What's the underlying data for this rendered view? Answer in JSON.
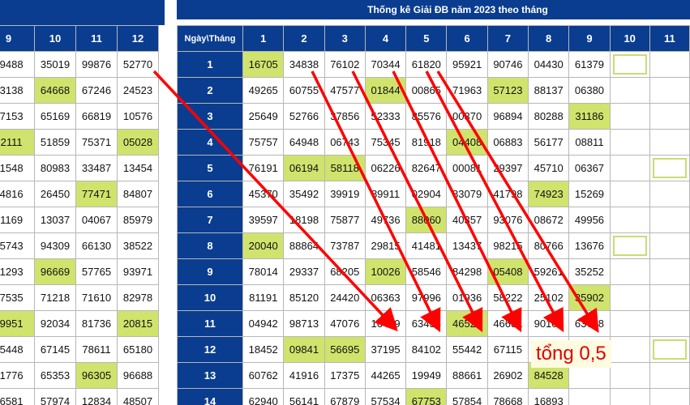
{
  "title": "Thống kê Giải ĐB năm 2023 theo tháng",
  "corner_label": "Ngày\\Tháng",
  "note": "tổng 0,5",
  "colors": {
    "header_bg": "#0a3d8f",
    "highlight": "#d0e36d",
    "arrow": "#ff0000",
    "note_text": "#e00000"
  },
  "left_table": {
    "headers": [
      "9",
      "10",
      "11",
      "12"
    ],
    "rows": [
      {
        "cells": [
          "69488",
          "35019",
          "99876",
          "52770"
        ],
        "hl": []
      },
      {
        "cells": [
          "03138",
          "64668",
          "67246",
          "24523"
        ],
        "hl": [
          1
        ]
      },
      {
        "cells": [
          "47153",
          "65169",
          "66819",
          "10576"
        ],
        "hl": []
      },
      {
        "cells": [
          "62111",
          "51859",
          "75371",
          "05028"
        ],
        "hl": [
          0,
          3
        ]
      },
      {
        "cells": [
          "01548",
          "80983",
          "33487",
          "13454"
        ],
        "hl": []
      },
      {
        "cells": [
          "44816",
          "26450",
          "77471",
          "84807"
        ],
        "hl": [
          2
        ]
      },
      {
        "cells": [
          "51169",
          "13037",
          "04067",
          "85979"
        ],
        "hl": []
      },
      {
        "cells": [
          "75743",
          "94309",
          "66130",
          "38522"
        ],
        "hl": []
      },
      {
        "cells": [
          "01293",
          "96669",
          "57765",
          "93971"
        ],
        "hl": [
          1
        ]
      },
      {
        "cells": [
          "17535",
          "71218",
          "71610",
          "82978"
        ],
        "hl": []
      },
      {
        "cells": [
          "99951",
          "92034",
          "81736",
          "20815"
        ],
        "hl": [
          0,
          3
        ]
      },
      {
        "cells": [
          "55448",
          "67145",
          "78611",
          "65180"
        ],
        "hl": []
      },
      {
        "cells": [
          "21776",
          "65353",
          "96305",
          "96688"
        ],
        "hl": [
          2
        ]
      },
      {
        "cells": [
          "56581",
          "57974",
          "12834",
          "48507"
        ],
        "hl": []
      }
    ]
  },
  "right_table": {
    "headers": [
      "1",
      "2",
      "3",
      "4",
      "5",
      "6",
      "7",
      "8",
      "9",
      "10",
      "11"
    ],
    "rows": [
      {
        "day": "1",
        "cells": [
          "16705",
          "34838",
          "76102",
          "70344",
          "61820",
          "95921",
          "90746",
          "04430",
          "61379",
          "",
          ""
        ],
        "hl": [
          0
        ],
        "box": [
          9
        ]
      },
      {
        "day": "2",
        "cells": [
          "49265",
          "60755",
          "47577",
          "01844",
          "00865",
          "71963",
          "57123",
          "88137",
          "06380",
          "",
          ""
        ],
        "hl": [
          3,
          6
        ],
        "box": []
      },
      {
        "day": "3",
        "cells": [
          "25649",
          "52766",
          "37856",
          "52333",
          "85576",
          "00370",
          "96894",
          "80288",
          "31186",
          "",
          ""
        ],
        "hl": [
          8
        ],
        "box": []
      },
      {
        "day": "4",
        "cells": [
          "75757",
          "64948",
          "06743",
          "75345",
          "81918",
          "04408",
          "06883",
          "56177",
          "08811",
          "",
          ""
        ],
        "hl": [
          5
        ],
        "box": []
      },
      {
        "day": "5",
        "cells": [
          "76191",
          "06194",
          "58118",
          "06226",
          "82647",
          "00081",
          "29397",
          "45710",
          "06367",
          "",
          ""
        ],
        "hl": [
          1,
          2
        ],
        "box": [
          10
        ]
      },
      {
        "day": "6",
        "cells": [
          "45370",
          "35492",
          "39919",
          "89911",
          "02904",
          "83079",
          "41798",
          "74923",
          "15269",
          "",
          ""
        ],
        "hl": [
          7
        ],
        "box": []
      },
      {
        "day": "7",
        "cells": [
          "39597",
          "18198",
          "75877",
          "49736",
          "88060",
          "40357",
          "93076",
          "08672",
          "49956",
          "",
          ""
        ],
        "hl": [
          4
        ],
        "box": []
      },
      {
        "day": "8",
        "cells": [
          "20040",
          "88864",
          "73787",
          "29815",
          "41481",
          "13437",
          "98215",
          "80766",
          "13676",
          "",
          ""
        ],
        "hl": [
          0
        ],
        "box": [
          9
        ]
      },
      {
        "day": "9",
        "cells": [
          "78014",
          "29337",
          "68205",
          "10026",
          "58546",
          "84298",
          "05408",
          "59261",
          "35252",
          "",
          ""
        ],
        "hl": [
          3,
          6
        ],
        "box": []
      },
      {
        "day": "10",
        "cells": [
          "81191",
          "85120",
          "24420",
          "06363",
          "97996",
          "01936",
          "58222",
          "25102",
          "35902",
          "",
          ""
        ],
        "hl": [
          8
        ],
        "box": []
      },
      {
        "day": "11",
        "cells": [
          "04942",
          "98713",
          "47076",
          "16439",
          "63434",
          "46520",
          "46631",
          "90109",
          "63768",
          "",
          ""
        ],
        "hl": [
          5
        ],
        "box": []
      },
      {
        "day": "12",
        "cells": [
          "18452",
          "09841",
          "56695",
          "37195",
          "84102",
          "55442",
          "67115",
          "06848",
          "",
          "",
          ""
        ],
        "hl": [
          1,
          2
        ],
        "box": [
          10
        ]
      },
      {
        "day": "13",
        "cells": [
          "60762",
          "41916",
          "17375",
          "44265",
          "19949",
          "88661",
          "26902",
          "84528",
          "",
          "",
          ""
        ],
        "hl": [
          7
        ],
        "box": []
      },
      {
        "day": "14",
        "cells": [
          "62940",
          "56141",
          "67879",
          "57534",
          "67753",
          "57854",
          "78668",
          "16893",
          "",
          "",
          ""
        ],
        "hl": [
          4
        ],
        "box": []
      }
    ]
  }
}
